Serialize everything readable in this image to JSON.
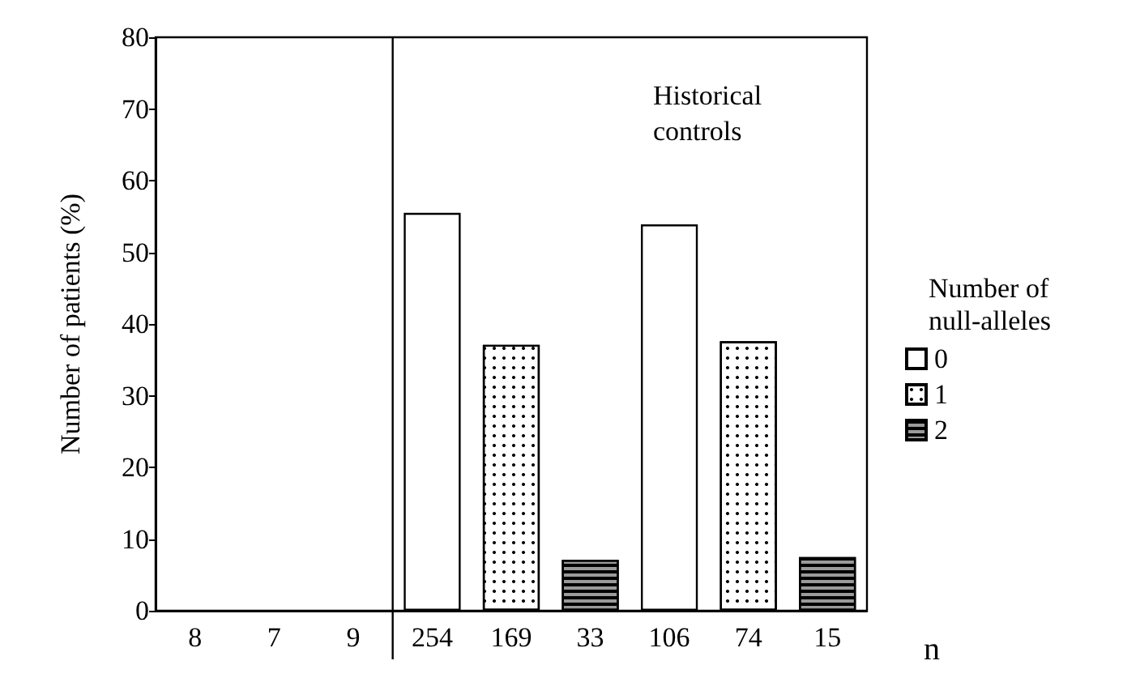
{
  "chart_data": {
    "type": "bar",
    "ylabel": "Number of patients (%)",
    "xlabel": "n",
    "legend_title": "Number of null-alleles",
    "categories": [
      "8",
      "7",
      "9",
      "254",
      "169",
      "33",
      "106",
      "74",
      "15"
    ],
    "series": [
      {
        "name": "0",
        "color": "#ffffff",
        "values": [
          null,
          null,
          null,
          55.5,
          null,
          null,
          53.9,
          null,
          null
        ]
      },
      {
        "name": "1",
        "color": "#ffffff",
        "values": [
          null,
          null,
          null,
          null,
          37.1,
          null,
          null,
          37.6,
          null
        ]
      },
      {
        "name": "2",
        "color": "#9a9a9a",
        "values": [
          null,
          null,
          null,
          null,
          null,
          7.1,
          null,
          null,
          7.5
        ]
      }
    ],
    "ylim": [
      0,
      80
    ],
    "yticks": [
      0,
      10,
      20,
      30,
      40,
      50,
      60,
      70,
      80
    ],
    "annotations": [
      "Historical controls"
    ],
    "grid": false,
    "legend": "right"
  }
}
